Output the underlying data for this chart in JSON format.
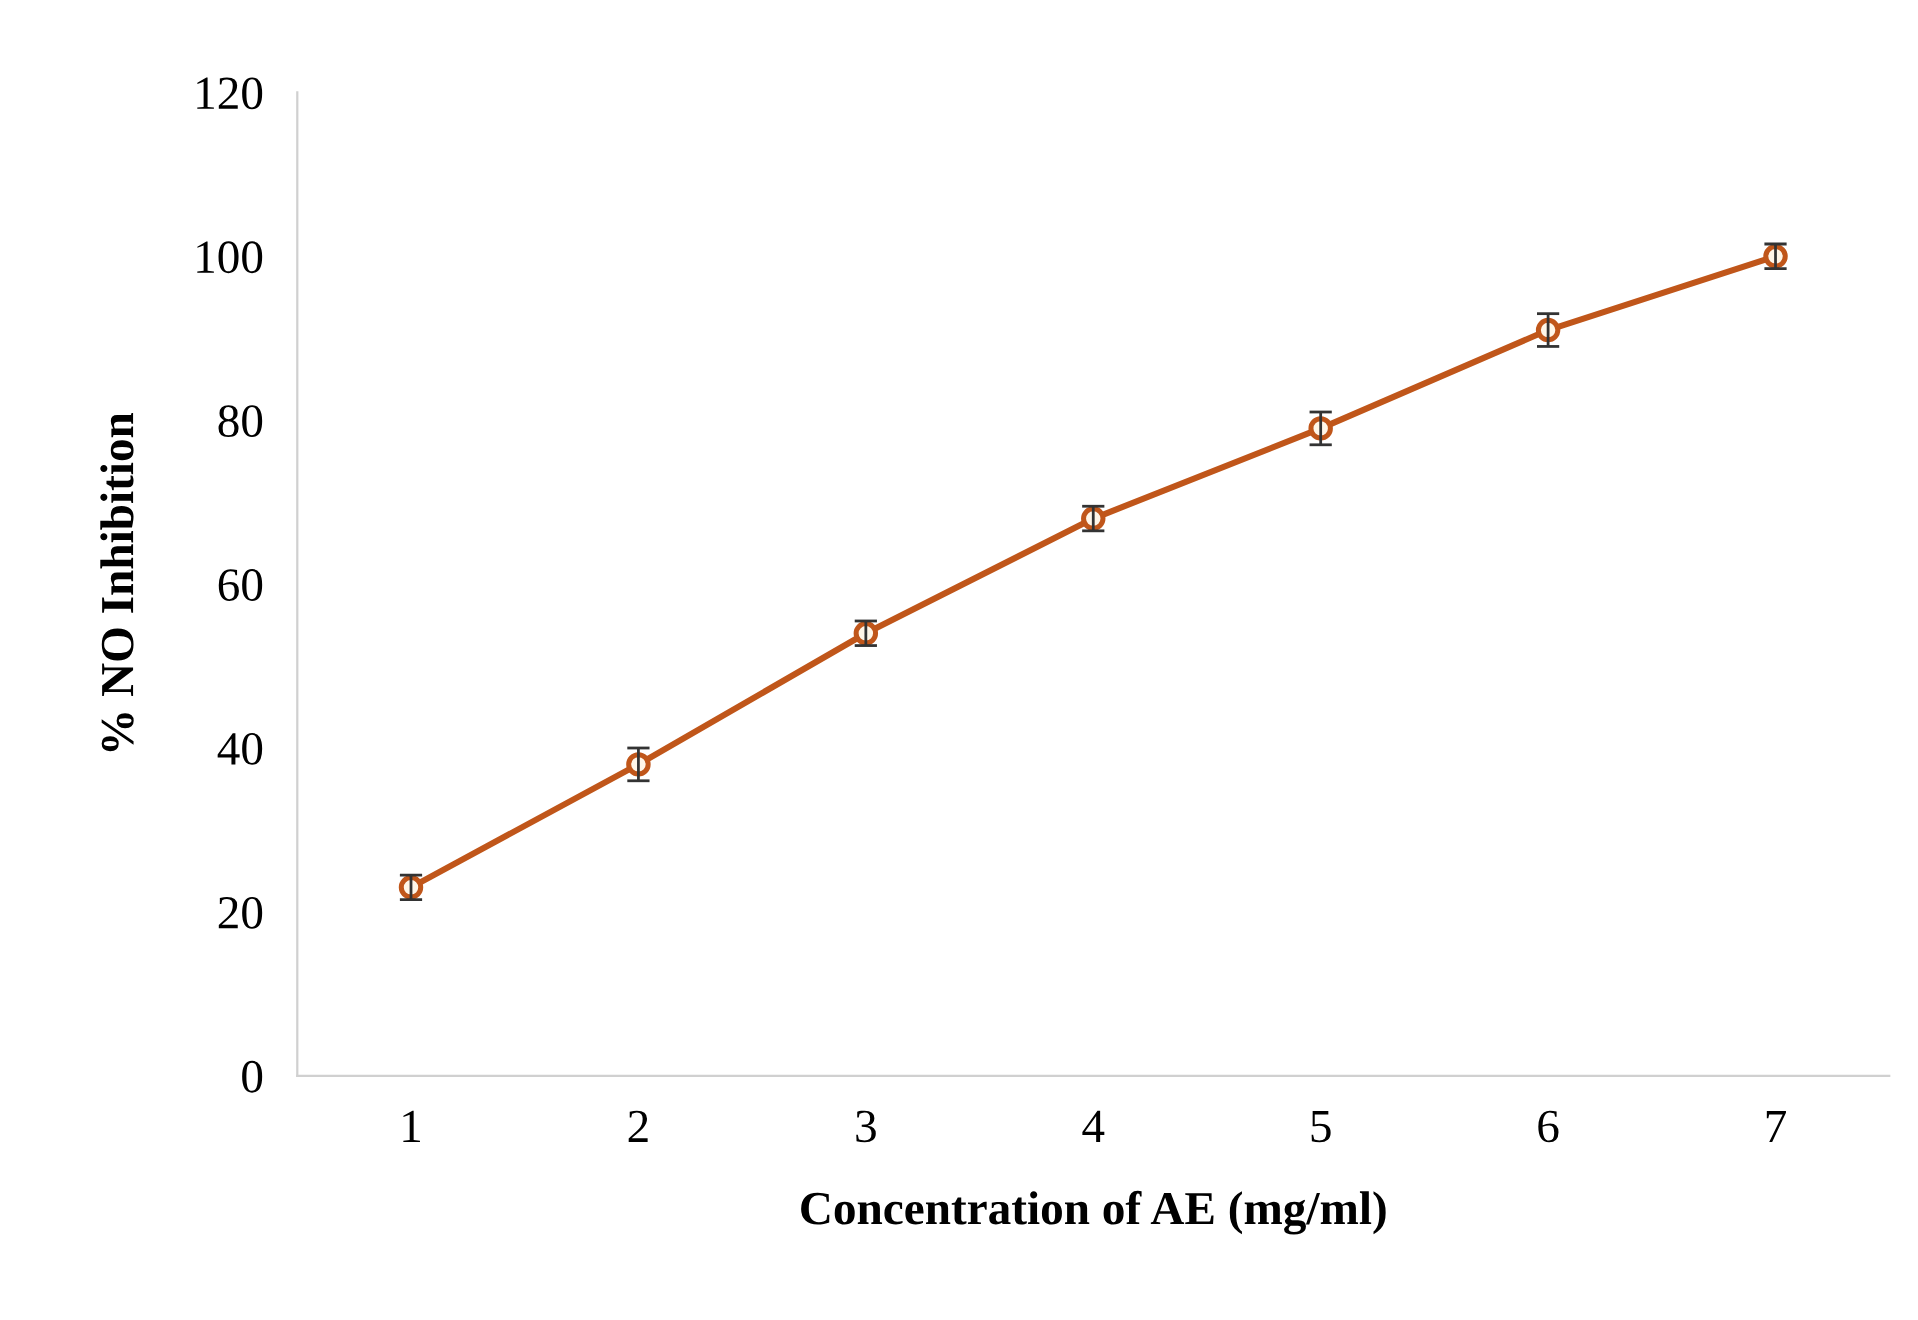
{
  "chart_data": {
    "type": "line",
    "xlabel": "Concentration of AE (mg/ml)",
    "ylabel": "% NO Inhibition",
    "categories": [
      "1",
      "2",
      "3",
      "4",
      "5",
      "6",
      "7"
    ],
    "series": [
      {
        "color": "#c0561a",
        "values": [
          23,
          38,
          54,
          68,
          79,
          91,
          100
        ],
        "errors": [
          1.5,
          2,
          1.5,
          1.5,
          2,
          2,
          1.5
        ]
      }
    ],
    "ylim": [
      0,
      120
    ],
    "yticks": [
      0,
      20,
      40,
      60,
      80,
      100,
      120
    ],
    "grid": false,
    "marker": "circle",
    "line_style": "solid"
  }
}
